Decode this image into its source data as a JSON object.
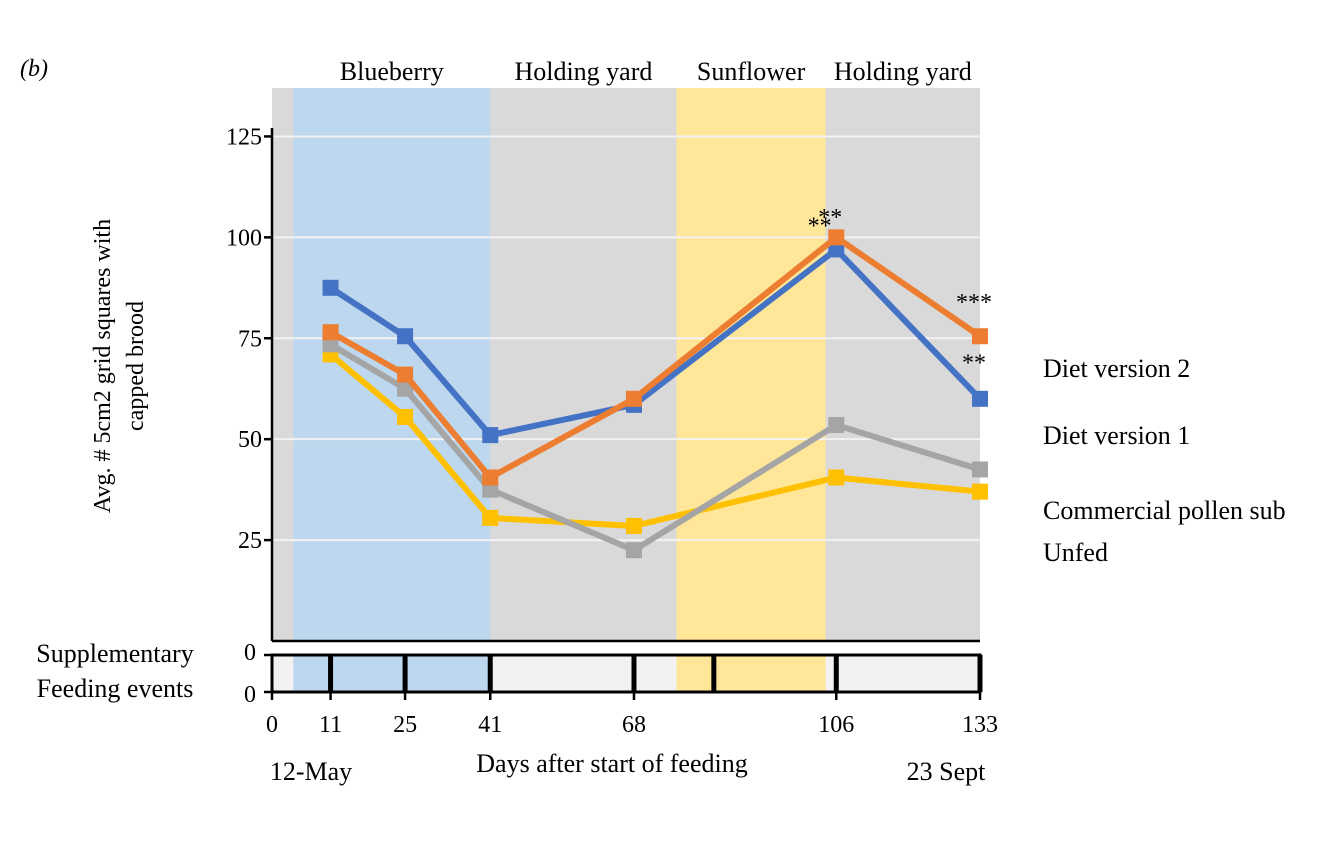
{
  "panel_label": "(b)",
  "chart_data": {
    "type": "line",
    "ylabel_line1": "Avg. # 5cm2 grid squares with",
    "ylabel_line2": "capped brood",
    "xlabel": "Days after start of feeding",
    "x_start_label": "12-May",
    "x_end_label": "23 Sept",
    "xlim": [
      0,
      133
    ],
    "ylim": [
      0,
      137
    ],
    "yticks": [
      25,
      50,
      75,
      100,
      125
    ],
    "xticks": [
      0,
      11,
      25,
      41,
      68,
      106,
      133
    ],
    "x": [
      11,
      25,
      41,
      68,
      106,
      133
    ],
    "series": [
      {
        "name": "Diet version 2",
        "color": "#ED7D31",
        "values": [
          76.5,
          66,
          40.5,
          60,
          100,
          75.5
        ]
      },
      {
        "name": "Diet version 1",
        "color": "#4472C4",
        "values": [
          87.5,
          75.5,
          51,
          58.5,
          97,
          60
        ]
      },
      {
        "name": "Commercial pollen sub",
        "color": "#A5A5A5",
        "values": [
          73.5,
          62.5,
          37.5,
          22.5,
          53.5,
          42.5
        ]
      },
      {
        "name": "Unfed",
        "color": "#FFC000",
        "values": [
          71,
          55.5,
          30.5,
          28.5,
          40.5,
          37
        ]
      }
    ],
    "phases": [
      {
        "label": "Blueberry",
        "start": 4,
        "end": 41,
        "color": "#BDD7EE"
      },
      {
        "label": "Holding yard",
        "start": 41,
        "end": 76,
        "color": "#D9D9D9"
      },
      {
        "label": "Sunflower",
        "start": 76,
        "end": 104,
        "color": "#FFE699"
      },
      {
        "label": "Holding yard",
        "start": 104,
        "end": 133,
        "color": "#D9D9D9"
      }
    ],
    "annotations": [
      {
        "text": "**",
        "x": 106,
        "y": 103
      },
      {
        "text": "**",
        "x": 104,
        "y": 101
      },
      {
        "text": "***",
        "x": 133,
        "y": 82
      },
      {
        "text": "**",
        "x": 133,
        "y": 67
      }
    ],
    "feeding_panel": {
      "label_line1": "Supplementary",
      "label_line2": "Feeding events",
      "ytick_top": "0",
      "ytick_bottom": "0",
      "events": [
        11,
        25,
        41,
        68,
        83,
        106,
        133
      ]
    }
  }
}
